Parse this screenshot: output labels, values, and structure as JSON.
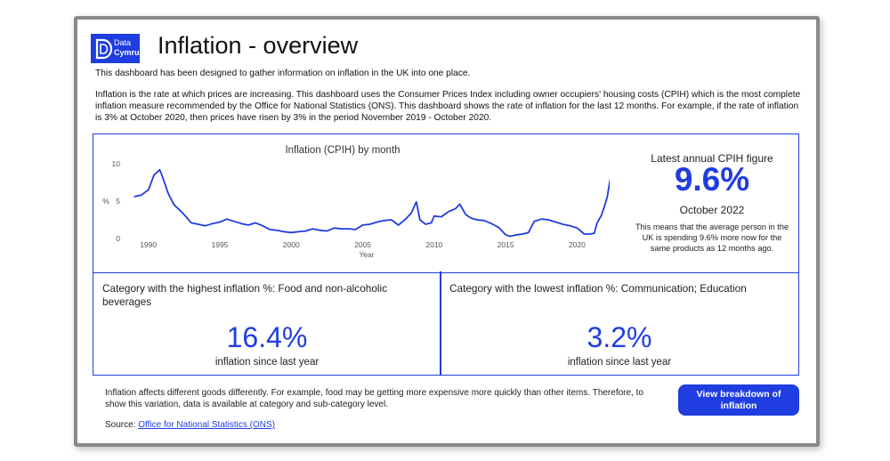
{
  "brand": {
    "line1": "Data",
    "line2": "Cymru"
  },
  "page_title": "Inflation - overview",
  "intro": "This dashboard has been designed to gather information on inflation in the UK into one place.",
  "description": "Inflation is the rate at which prices are increasing. This dashboard uses the Consumer Prices Index including owner occupiers' housing costs (CPIH) which is the most complete inflation measure recommended by the Office for National Statistics (ONS). This dashboard shows the rate of inflation for the last 12 months. For example, if the rate of inflation is 3% at October 2020, then prices have risen by 3% in the period November 2019 - October 2020.",
  "latest": {
    "label": "Latest annual CPIH figure",
    "value": "9.6%",
    "date": "October 2022",
    "note": "This means that the average person in the UK is spending 9.6% more now for the same products as 12 months ago."
  },
  "highest": {
    "label": "Category with the highest inflation %: Food and non-alcoholic beverages",
    "value": "16.4%",
    "sub": "inflation since last year"
  },
  "lowest": {
    "label": "Category with the lowest inflation %: Communication; Education",
    "value": "3.2%",
    "sub": "inflation since last year"
  },
  "footer": {
    "text": "Inflation affects different goods differently. For example, food may be getting more expensive more quickly than other items. Therefore, to show this variation, data is available at category and sub-category level.",
    "source_prefix": "Source: ",
    "source_link": "Office for National Statistics (ONS)"
  },
  "button_label": "View breakdown of inflation",
  "colors": {
    "accent": "#1f3de0",
    "line": "#1f3de0"
  },
  "chart_data": {
    "type": "line",
    "title": "Inflation (CPIH) by month",
    "xlabel": "Year",
    "ylabel": "%",
    "ylim": [
      0,
      10
    ],
    "xlim": [
      1988.9,
      2022.9
    ],
    "xticks": [
      1990,
      1995,
      2000,
      2005,
      2010,
      2015,
      2020
    ],
    "yticks": [
      0,
      5,
      10
    ],
    "grid": false,
    "series": [
      {
        "x": [
          1989.0,
          1989.5,
          1990.0,
          1990.4,
          1990.8,
          1991.0,
          1991.4,
          1991.8,
          1992.2,
          1992.6,
          1993.0,
          1993.5,
          1994.0,
          1994.5,
          1995.0,
          1995.5,
          1996.0,
          1996.5,
          1997.0,
          1997.5,
          1998.0,
          1998.5,
          1999.0,
          1999.5,
          2000.0,
          2000.5,
          2001.0,
          2001.5,
          2002.0,
          2002.5,
          2003.0,
          2003.5,
          2004.0,
          2004.5,
          2005.0,
          2005.5,
          2006.0,
          2006.5,
          2007.0,
          2007.5,
          2008.0,
          2008.4,
          2008.75,
          2009.0,
          2009.4,
          2009.8,
          2010.0,
          2010.5,
          2011.0,
          2011.5,
          2011.8,
          2012.2,
          2012.6,
          2013.0,
          2013.5,
          2014.0,
          2014.5,
          2015.0,
          2015.3,
          2015.8,
          2016.2,
          2016.6,
          2017.0,
          2017.5,
          2018.0,
          2018.5,
          2019.0,
          2019.5,
          2020.0,
          2020.5,
          2020.9,
          2021.2,
          2021.4,
          2021.7,
          2021.9,
          2022.1,
          2022.3,
          2022.5,
          2022.8
        ],
        "y": [
          5.6,
          5.8,
          6.5,
          8.5,
          9.2,
          8.2,
          6.0,
          4.5,
          3.8,
          3.0,
          2.1,
          1.9,
          1.7,
          2.0,
          2.2,
          2.6,
          2.3,
          2.0,
          1.8,
          2.1,
          1.7,
          1.2,
          1.1,
          0.9,
          0.8,
          0.9,
          1.0,
          1.3,
          1.1,
          1.0,
          1.4,
          1.3,
          1.3,
          1.2,
          1.8,
          1.9,
          2.2,
          2.4,
          2.5,
          1.8,
          2.6,
          3.4,
          4.9,
          2.5,
          1.9,
          2.1,
          3.0,
          2.9,
          3.6,
          4.0,
          4.6,
          3.2,
          2.7,
          2.5,
          2.4,
          2.0,
          1.5,
          0.5,
          0.3,
          0.5,
          0.6,
          0.8,
          2.3,
          2.6,
          2.5,
          2.2,
          1.9,
          1.7,
          1.4,
          0.6,
          0.6,
          0.7,
          2.1,
          3.1,
          4.2,
          5.5,
          7.8,
          8.2,
          9.6
        ]
      }
    ]
  }
}
